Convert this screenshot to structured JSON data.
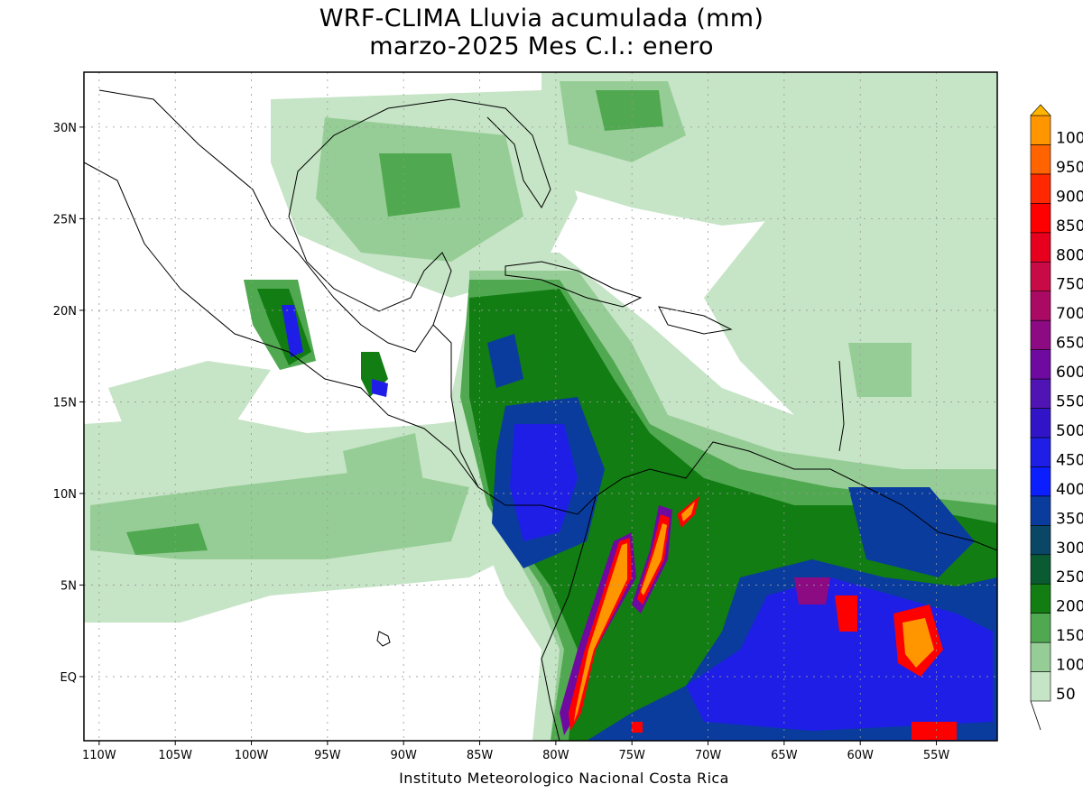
{
  "map": {
    "title": "WRF-CLIMA Lluvia acumulada (mm)",
    "subtitle": "marzo-2025 Mes C.I.: enero",
    "credit": "Instituto Meteorologico Nacional Costa Rica",
    "extent": {
      "lon_min": -111,
      "lon_max": -51,
      "lat_min": -3.5,
      "lat_max": 33
    },
    "lon_ticks": [
      {
        "lon": -110,
        "label": "110W"
      },
      {
        "lon": -105,
        "label": "105W"
      },
      {
        "lon": -100,
        "label": "100W"
      },
      {
        "lon": -95,
        "label": "95W"
      },
      {
        "lon": -90,
        "label": "90W"
      },
      {
        "lon": -85,
        "label": "85W"
      },
      {
        "lon": -80,
        "label": "80W"
      },
      {
        "lon": -75,
        "label": "75W"
      },
      {
        "lon": -70,
        "label": "70W"
      },
      {
        "lon": -65,
        "label": "65W"
      },
      {
        "lon": -60,
        "label": "60W"
      },
      {
        "lon": -55,
        "label": "55W"
      }
    ],
    "lat_ticks": [
      {
        "lat": 30,
        "label": "30N"
      },
      {
        "lat": 25,
        "label": "25N"
      },
      {
        "lat": 20,
        "label": "20N"
      },
      {
        "lat": 15,
        "label": "15N"
      },
      {
        "lat": 10,
        "label": "10N"
      },
      {
        "lat": 5,
        "label": "5N"
      },
      {
        "lat": 0,
        "label": "EQ"
      }
    ],
    "colorbar": {
      "levels": [
        {
          "label": "50",
          "color": "#c6e4c6"
        },
        {
          "label": "100",
          "color": "#96cd96"
        },
        {
          "label": "150",
          "color": "#50a850"
        },
        {
          "label": "200",
          "color": "#127d12"
        },
        {
          "label": "250",
          "color": "#0a5a32"
        },
        {
          "label": "300",
          "color": "#0a4666"
        },
        {
          "label": "350",
          "color": "#0a3c9e"
        },
        {
          "label": "400",
          "color": "#0a1eff"
        },
        {
          "label": "450",
          "color": "#1e1ee6"
        },
        {
          "label": "500",
          "color": "#3214c8"
        },
        {
          "label": "550",
          "color": "#5014b4"
        },
        {
          "label": "600",
          "color": "#6e0aa0"
        },
        {
          "label": "650",
          "color": "#8c0a82"
        },
        {
          "label": "700",
          "color": "#aa0a64"
        },
        {
          "label": "750",
          "color": "#c80a46"
        },
        {
          "label": "800",
          "color": "#e6001e"
        },
        {
          "label": "850",
          "color": "#ff0000"
        },
        {
          "label": "900",
          "color": "#ff2800"
        },
        {
          "label": "950",
          "color": "#ff6400"
        },
        {
          "label": "100",
          "color": "#ff9600"
        }
      ],
      "over_color": "#ffb400"
    }
  }
}
